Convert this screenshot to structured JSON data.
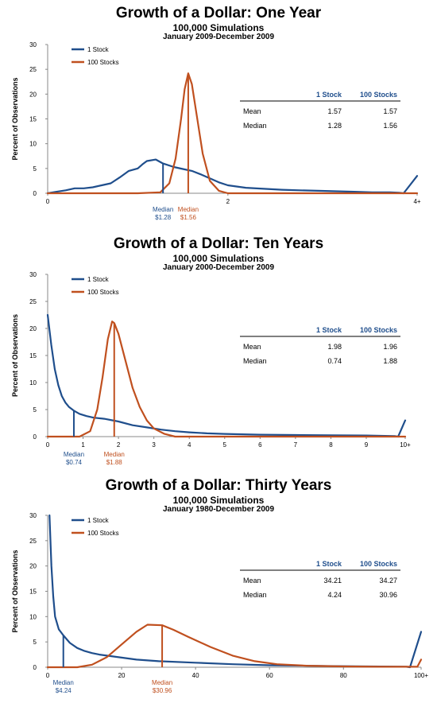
{
  "colors": {
    "one_stock": "#1f4e8c",
    "hundred_stocks": "#c0501f",
    "axis": "#888888",
    "text_blue": "#1f4e8c"
  },
  "chart_data": [
    {
      "type": "line",
      "title": "Growth of a Dollar: One Year",
      "subtitle": "100,000 Simulations",
      "period": "January 2009-December 2009",
      "xlabel": "",
      "ylabel": "Percent of Observations",
      "ylim": [
        0,
        30
      ],
      "xlim": [
        0,
        4.1
      ],
      "y_ticks": [
        "0",
        "5",
        "10",
        "15",
        "20",
        "25",
        "30"
      ],
      "x_ticks": [
        {
          "value": 0,
          "label": "0"
        },
        {
          "value": 2,
          "label": "2"
        },
        {
          "value": 4.1,
          "label": "4+"
        }
      ],
      "legend_position": "top-left",
      "series": [
        {
          "name": "1 Stock",
          "color_key": "one_stock",
          "x": [
            0,
            0.1,
            0.2,
            0.3,
            0.4,
            0.5,
            0.6,
            0.7,
            0.8,
            0.9,
            1.0,
            1.05,
            1.1,
            1.2,
            1.28,
            1.4,
            1.5,
            1.6,
            1.7,
            1.8,
            1.9,
            2.0,
            2.2,
            2.4,
            2.6,
            2.8,
            3.0,
            3.2,
            3.4,
            3.6,
            3.8,
            3.9,
            3.95,
            4.1
          ],
          "y": [
            0,
            0.3,
            0.6,
            1.0,
            1.0,
            1.2,
            1.6,
            2.0,
            3.2,
            4.5,
            5.0,
            5.8,
            6.5,
            6.8,
            6.0,
            5.3,
            4.9,
            4.5,
            3.8,
            3.0,
            2.2,
            1.6,
            1.1,
            0.9,
            0.7,
            0.6,
            0.5,
            0.4,
            0.3,
            0.2,
            0.2,
            0.1,
            0,
            3.5
          ]
        },
        {
          "name": "100 Stocks",
          "color_key": "hundred_stocks",
          "x": [
            0,
            1.0,
            1.25,
            1.35,
            1.42,
            1.48,
            1.52,
            1.56,
            1.6,
            1.66,
            1.72,
            1.8,
            1.9,
            2.0,
            4.1
          ],
          "y": [
            0,
            0,
            0.2,
            2.0,
            7.0,
            15.0,
            21.0,
            24.2,
            22.0,
            15.0,
            8.0,
            2.5,
            0.5,
            0,
            0
          ]
        }
      ],
      "medians": [
        {
          "series": "1 Stock",
          "x": 1.28,
          "y": 6.0,
          "label": "Median",
          "value": "$1.28"
        },
        {
          "series": "100 Stocks",
          "x": 1.56,
          "y": 24.2,
          "label": "Median",
          "value": "$1.56"
        }
      ],
      "stats_table": {
        "headers": [
          "",
          "1 Stock",
          "100 Stocks"
        ],
        "rows": [
          [
            "Mean",
            "1.57",
            "1.57"
          ],
          [
            "Median",
            "1.28",
            "1.56"
          ]
        ]
      }
    },
    {
      "type": "line",
      "title": "Growth of a Dollar: Ten Years",
      "subtitle": "100,000 Simulations",
      "period": "January 2000-December 2009",
      "xlabel": "",
      "ylabel": "Percent of Observations",
      "ylim": [
        0,
        30
      ],
      "xlim": [
        0,
        10.1
      ],
      "y_ticks": [
        "0",
        "5",
        "10",
        "15",
        "20",
        "25",
        "30"
      ],
      "x_ticks": [
        {
          "value": 0,
          "label": "0"
        },
        {
          "value": 1,
          "label": "1"
        },
        {
          "value": 2,
          "label": "2"
        },
        {
          "value": 3,
          "label": "3"
        },
        {
          "value": 4,
          "label": "4"
        },
        {
          "value": 5,
          "label": "5"
        },
        {
          "value": 6,
          "label": "6"
        },
        {
          "value": 7,
          "label": "7"
        },
        {
          "value": 8,
          "label": "8"
        },
        {
          "value": 9,
          "label": "9"
        },
        {
          "value": 10.1,
          "label": "10+"
        }
      ],
      "legend_position": "top-left",
      "series": [
        {
          "name": "1 Stock",
          "color_key": "one_stock",
          "x": [
            0,
            0.1,
            0.2,
            0.3,
            0.4,
            0.5,
            0.6,
            0.74,
            0.9,
            1.1,
            1.3,
            1.6,
            2.0,
            2.4,
            2.8,
            3.2,
            3.6,
            4.0,
            4.5,
            5.0,
            6.0,
            7.0,
            8.0,
            9.0,
            9.8,
            9.9,
            10.1
          ],
          "y": [
            22.5,
            17,
            12.5,
            9.5,
            7.5,
            6.3,
            5.5,
            4.8,
            4.2,
            3.8,
            3.5,
            3.3,
            2.8,
            2.1,
            1.7,
            1.3,
            1.0,
            0.8,
            0.6,
            0.5,
            0.35,
            0.3,
            0.25,
            0.2,
            0.1,
            0,
            3.0
          ]
        },
        {
          "name": "100 Stocks",
          "color_key": "hundred_stocks",
          "x": [
            0,
            0.9,
            1.2,
            1.4,
            1.55,
            1.7,
            1.82,
            1.88,
            2.0,
            2.2,
            2.4,
            2.6,
            2.8,
            3.0,
            3.3,
            3.6,
            10.1
          ],
          "y": [
            0,
            0,
            1.0,
            5.0,
            11.0,
            18.0,
            21.3,
            21.0,
            19.0,
            14.0,
            9.0,
            5.5,
            3.0,
            1.5,
            0.5,
            0,
            0
          ]
        }
      ],
      "medians": [
        {
          "series": "1 Stock",
          "x": 0.74,
          "y": 4.8,
          "label": "Median",
          "value": "$0.74"
        },
        {
          "series": "100 Stocks",
          "x": 1.88,
          "y": 21.0,
          "label": "Median",
          "value": "$1.88"
        }
      ],
      "stats_table": {
        "headers": [
          "",
          "1 Stock",
          "100 Stocks"
        ],
        "rows": [
          [
            "Mean",
            "1.98",
            "1.96"
          ],
          [
            "Median",
            "0.74",
            "1.88"
          ]
        ]
      }
    },
    {
      "type": "line",
      "title": "Growth of a Dollar: Thirty Years",
      "subtitle": "100,000 Simulations",
      "period": "January 1980-December 2009",
      "xlabel": "",
      "ylabel": "Percent of Observations",
      "ylim": [
        0,
        30
      ],
      "xlim": [
        0,
        101
      ],
      "y_ticks": [
        "0",
        "5",
        "10",
        "15",
        "20",
        "25",
        "30"
      ],
      "x_ticks": [
        {
          "value": 0,
          "label": "0"
        },
        {
          "value": 20,
          "label": "20"
        },
        {
          "value": 40,
          "label": "40"
        },
        {
          "value": 60,
          "label": "60"
        },
        {
          "value": 80,
          "label": "80"
        },
        {
          "value": 101,
          "label": "100+"
        }
      ],
      "legend_position": "top-left",
      "series": [
        {
          "name": "1 Stock",
          "color_key": "one_stock",
          "x": [
            0.5,
            1,
            1.5,
            2,
            3,
            4.24,
            6,
            8,
            10,
            12,
            14,
            16,
            18,
            20,
            24,
            30,
            40,
            50,
            60,
            80,
            97,
            98,
            101
          ],
          "y": [
            30,
            20,
            14,
            10,
            7.5,
            6.3,
            4.8,
            3.8,
            3.2,
            2.8,
            2.5,
            2.3,
            2.1,
            1.9,
            1.5,
            1.2,
            0.9,
            0.6,
            0.4,
            0.2,
            0.1,
            0,
            7.0
          ]
        },
        {
          "name": "100 Stocks",
          "color_key": "hundred_stocks",
          "x": [
            0,
            8,
            12,
            16,
            20,
            24,
            27,
            30.96,
            34,
            38,
            44,
            50,
            56,
            62,
            70,
            80,
            90,
            100,
            101
          ],
          "y": [
            0,
            0,
            0.5,
            2.0,
            4.5,
            7.0,
            8.4,
            8.3,
            7.4,
            6.0,
            4.0,
            2.3,
            1.2,
            0.6,
            0.3,
            0.15,
            0.1,
            0.1,
            1.5
          ]
        }
      ],
      "medians": [
        {
          "series": "1 Stock",
          "x": 4.24,
          "y": 6.3,
          "label": "Median",
          "value": "$4.24"
        },
        {
          "series": "100 Stocks",
          "x": 30.96,
          "y": 8.3,
          "label": "Median",
          "value": "$30.96"
        }
      ],
      "stats_table": {
        "headers": [
          "",
          "1 Stock",
          "100 Stocks"
        ],
        "rows": [
          [
            "Mean",
            "34.21",
            "34.27"
          ],
          [
            "Median",
            "4.24",
            "30.96"
          ]
        ]
      }
    }
  ]
}
